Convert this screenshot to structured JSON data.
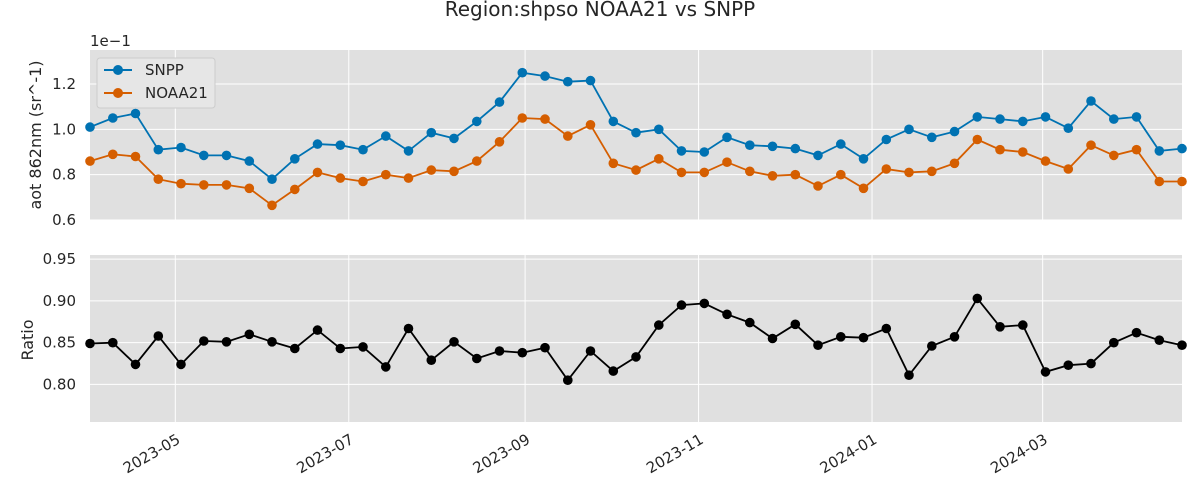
{
  "chart_data": {
    "title": "Region:shpso NOAA21 vs SNPP",
    "x_dates": [
      "2023-04-01",
      "2023-04-09",
      "2023-04-17",
      "2023-04-25",
      "2023-05-03",
      "2023-05-11",
      "2023-05-19",
      "2023-05-27",
      "2023-06-04",
      "2023-06-12",
      "2023-06-20",
      "2023-06-28",
      "2023-07-06",
      "2023-07-14",
      "2023-07-22",
      "2023-07-30",
      "2023-08-07",
      "2023-08-15",
      "2023-08-23",
      "2023-08-31",
      "2023-09-08",
      "2023-09-16",
      "2023-09-24",
      "2023-10-02",
      "2023-10-10",
      "2023-10-18",
      "2023-10-26",
      "2023-11-03",
      "2023-11-11",
      "2023-11-19",
      "2023-11-27",
      "2023-12-05",
      "2023-12-13",
      "2023-12-21",
      "2023-12-29",
      "2024-01-06",
      "2024-01-14",
      "2024-01-22",
      "2024-01-30",
      "2024-02-07",
      "2024-02-15",
      "2024-02-23",
      "2024-03-02",
      "2024-03-10",
      "2024-03-18",
      "2024-03-26",
      "2024-04-03",
      "2024-04-11",
      "2024-04-19"
    ],
    "xlim": [
      "2023-04-01",
      "2024-04-19"
    ],
    "xticks": [
      "2023-05",
      "2023-07",
      "2023-09",
      "2023-11",
      "2024-01",
      "2024-03"
    ],
    "top": {
      "type": "line",
      "ylabel": "aot 862nm (sr^-1)",
      "offset_label": "1e−1",
      "ylim": [
        0.6,
        1.35
      ],
      "yticks": [
        "0.6",
        "0.8",
        "1.0",
        "1.2"
      ],
      "legend": "top-left",
      "series": [
        {
          "name": "SNPP",
          "color": "#0072b2",
          "values": [
            1.01,
            1.05,
            1.07,
            0.91,
            0.92,
            0.885,
            0.885,
            0.86,
            0.78,
            0.87,
            0.935,
            0.93,
            0.91,
            0.97,
            0.905,
            0.985,
            0.96,
            1.035,
            1.12,
            1.25,
            1.235,
            1.21,
            1.215,
            1.035,
            0.985,
            1.0,
            0.905,
            0.9,
            0.965,
            0.93,
            0.925,
            0.915,
            0.885,
            0.935,
            0.87,
            0.955,
            1.0,
            0.965,
            0.99,
            1.055,
            1.045,
            1.035,
            1.055,
            1.005,
            1.125,
            1.045,
            1.055,
            0.905,
            0.915
          ]
        },
        {
          "name": "NOAA21",
          "color": "#d55e00",
          "values": [
            0.86,
            0.89,
            0.88,
            0.78,
            0.76,
            0.755,
            0.755,
            0.74,
            0.665,
            0.735,
            0.81,
            0.785,
            0.77,
            0.8,
            0.785,
            0.82,
            0.815,
            0.86,
            0.945,
            1.05,
            1.045,
            0.97,
            1.02,
            0.85,
            0.82,
            0.87,
            0.81,
            0.81,
            0.855,
            0.815,
            0.795,
            0.8,
            0.75,
            0.8,
            0.74,
            0.825,
            0.81,
            0.815,
            0.85,
            0.955,
            0.91,
            0.9,
            0.86,
            0.825,
            0.93,
            0.885,
            0.91,
            0.77,
            0.77
          ]
        }
      ]
    },
    "bottom": {
      "type": "line",
      "ylabel": "Ratio",
      "ylim": [
        0.755,
        0.955
      ],
      "yticks": [
        "0.80",
        "0.85",
        "0.90",
        "0.95"
      ],
      "series": [
        {
          "name": "",
          "color": "#000000",
          "values": [
            0.849,
            0.85,
            0.824,
            0.858,
            0.824,
            0.852,
            0.851,
            0.86,
            0.851,
            0.843,
            0.865,
            0.843,
            0.845,
            0.821,
            0.867,
            0.829,
            0.851,
            0.831,
            0.84,
            0.838,
            0.844,
            0.805,
            0.84,
            0.816,
            0.833,
            0.871,
            0.895,
            0.897,
            0.884,
            0.874,
            0.855,
            0.872,
            0.847,
            0.857,
            0.856,
            0.867,
            0.811,
            0.846,
            0.857,
            0.903,
            0.869,
            0.871,
            0.815,
            0.823,
            0.825,
            0.85,
            0.862,
            0.853,
            0.847
          ]
        }
      ]
    }
  }
}
